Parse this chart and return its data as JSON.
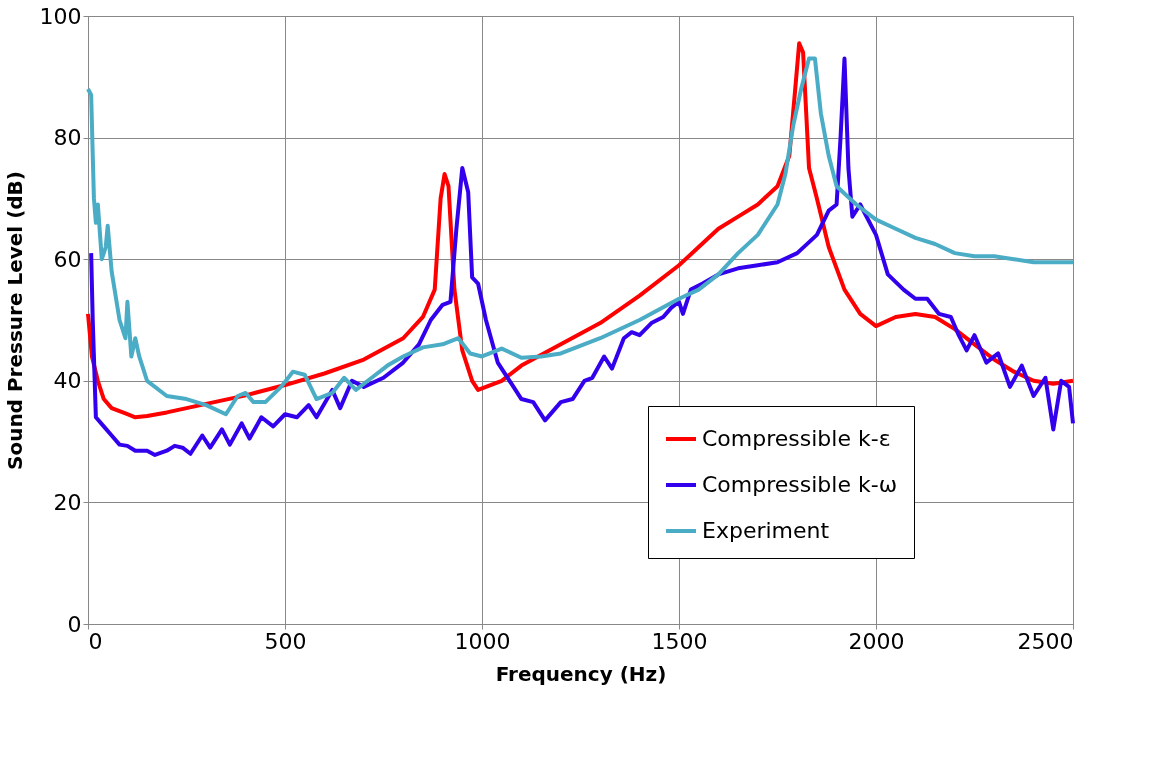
{
  "chart_data": {
    "type": "line",
    "xlabel": "Frequency (Hz)",
    "ylabel": "Sound Pressure Level (dB)",
    "xlim": [
      0,
      2500
    ],
    "xticks": [
      0,
      500,
      1000,
      1500,
      2000,
      2500
    ],
    "ylim": [
      0,
      100
    ],
    "yticks": [
      0,
      20,
      40,
      60,
      80,
      100
    ],
    "grid": true,
    "legend": "bottom right",
    "marker": "none",
    "line_style": "solid",
    "series": [
      {
        "name": "Compressible k-ε",
        "color": "#ff0000",
        "x": [
          0,
          10,
          25,
          40,
          60,
          100,
          120,
          150,
          200,
          300,
          400,
          500,
          600,
          700,
          800,
          850,
          880,
          895,
          905,
          915,
          930,
          950,
          975,
          990,
          1050,
          1100,
          1200,
          1300,
          1400,
          1500,
          1550,
          1600,
          1650,
          1700,
          1750,
          1780,
          1795,
          1805,
          1815,
          1830,
          1850,
          1880,
          1920,
          1960,
          2000,
          2050,
          2100,
          2150,
          2200,
          2250,
          2300,
          2350,
          2400,
          2450,
          2500
        ],
        "values": [
          51,
          44,
          40,
          37,
          35.5,
          34.5,
          34,
          34.2,
          34.8,
          36.2,
          37.6,
          39.3,
          41.2,
          43.5,
          47,
          50.5,
          55,
          70,
          74,
          72,
          55,
          45,
          40,
          38.5,
          40,
          42.5,
          46,
          49.5,
          54,
          59,
          62,
          65,
          67,
          69,
          72,
          77,
          88,
          95.5,
          94,
          75,
          70,
          62,
          55,
          51,
          49,
          50.5,
          51,
          50.5,
          48.5,
          46,
          43.5,
          41.5,
          40,
          39.5,
          40
        ]
      },
      {
        "name": "Compressible k-ω",
        "color": "#3300ee",
        "x": [
          8,
          12,
          20,
          40,
          60,
          80,
          100,
          120,
          150,
          170,
          200,
          220,
          240,
          260,
          290,
          310,
          340,
          360,
          390,
          410,
          440,
          470,
          500,
          530,
          560,
          580,
          620,
          640,
          670,
          700,
          750,
          800,
          840,
          870,
          900,
          920,
          935,
          950,
          965,
          975,
          990,
          1010,
          1040,
          1080,
          1100,
          1130,
          1160,
          1200,
          1230,
          1260,
          1280,
          1310,
          1330,
          1360,
          1380,
          1400,
          1430,
          1460,
          1480,
          1500,
          1510,
          1530,
          1560,
          1600,
          1650,
          1700,
          1750,
          1800,
          1850,
          1880,
          1900,
          1910,
          1920,
          1930,
          1940,
          1960,
          2000,
          2030,
          2070,
          2100,
          2130,
          2160,
          2190,
          2210,
          2230,
          2250,
          2280,
          2310,
          2340,
          2370,
          2400,
          2430,
          2450,
          2470,
          2490,
          2500
        ],
        "values": [
          61,
          50,
          34,
          32.5,
          31,
          29.5,
          29.3,
          28.5,
          28.5,
          27.8,
          28.5,
          29.3,
          29,
          28,
          31,
          29,
          32,
          29.5,
          33,
          30.5,
          34,
          32.5,
          34.5,
          34,
          36,
          34,
          38.5,
          35.5,
          40,
          39,
          40.5,
          43,
          46,
          50,
          52.5,
          53,
          65,
          75,
          71,
          57,
          56,
          50,
          43,
          39,
          37,
          36.5,
          33.5,
          36.5,
          37,
          40,
          40.5,
          44,
          42,
          47,
          48,
          47.5,
          49.5,
          50.5,
          52,
          53,
          51,
          55,
          56,
          57.5,
          58.5,
          59,
          59.5,
          61,
          64,
          68,
          69,
          80,
          93,
          75,
          67,
          69,
          64,
          57.5,
          55,
          53.5,
          53.5,
          51,
          50.5,
          47.5,
          45,
          47.5,
          43,
          44.5,
          39,
          42.5,
          37.5,
          40.5,
          32,
          40,
          39,
          33
        ]
      },
      {
        "name": "Experiment",
        "color": "#4bacc6",
        "x": [
          0,
          8,
          15,
          20,
          25,
          35,
          45,
          50,
          60,
          70,
          80,
          95,
          100,
          110,
          120,
          130,
          150,
          200,
          250,
          300,
          350,
          380,
          400,
          420,
          450,
          490,
          520,
          550,
          580,
          620,
          650,
          680,
          720,
          760,
          800,
          850,
          900,
          940,
          970,
          1000,
          1050,
          1100,
          1150,
          1200,
          1300,
          1400,
          1500,
          1550,
          1600,
          1650,
          1700,
          1750,
          1770,
          1790,
          1810,
          1830,
          1845,
          1860,
          1880,
          1900,
          1950,
          2000,
          2050,
          2100,
          2150,
          2200,
          2250,
          2300,
          2350,
          2400,
          2450,
          2500
        ],
        "values": [
          88,
          87,
          70,
          66,
          69,
          60,
          62,
          65.5,
          58,
          54,
          50,
          47,
          53,
          44,
          47,
          44,
          40,
          37.5,
          37,
          36,
          34.5,
          37.5,
          38,
          36.5,
          36.5,
          39,
          41.5,
          41,
          37,
          38,
          40.5,
          38.5,
          40.5,
          42.5,
          44,
          45.5,
          46,
          47,
          44.5,
          44,
          45.3,
          43.8,
          44,
          44.5,
          47,
          50,
          53.5,
          55,
          57.5,
          61,
          64,
          69,
          74,
          82,
          88,
          93,
          93,
          84,
          77,
          72,
          69,
          66.5,
          65,
          63.5,
          62.5,
          61,
          60.5,
          60.5,
          60,
          59.5,
          59.5,
          59.5
        ]
      }
    ]
  }
}
